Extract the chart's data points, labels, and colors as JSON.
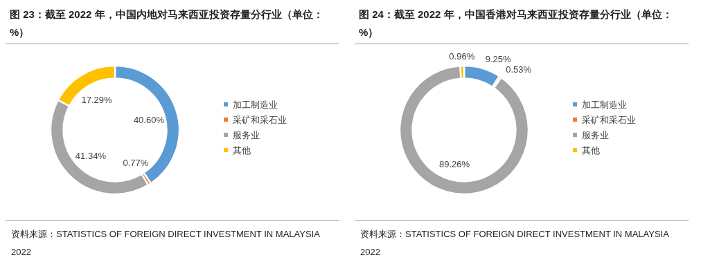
{
  "chart_data": [
    {
      "type": "donut",
      "title": "图 23：截至 2022 年，中国内地对马来西亚投资存量分行业（单位： %）",
      "categories": [
        "加工制造业",
        "采矿和采石业",
        "服务业",
        "其他"
      ],
      "values": [
        40.6,
        0.77,
        41.34,
        17.29
      ],
      "colors": [
        "#5b9bd5",
        "#ed7d31",
        "#a5a5a5",
        "#ffc000"
      ],
      "legend": "right",
      "value_labels": [
        "40.60%",
        "0.77%",
        "41.34%",
        "17.29%"
      ],
      "annotations": [
        "资料来源：STATISTICS OF FOREIGN DIRECT INVESTMENT IN MALAYSIA 2022"
      ]
    },
    {
      "type": "donut",
      "title": "图 24：截至 2022 年，中国香港对马来西亚投资存量分行业（单位：%）",
      "categories": [
        "加工制造业",
        "采矿和采石业",
        "服务业",
        "其他"
      ],
      "values": [
        9.25,
        0.53,
        89.26,
        0.96
      ],
      "colors": [
        "#5b9bd5",
        "#ed7d31",
        "#a5a5a5",
        "#ffc000"
      ],
      "legend": "right",
      "value_labels": [
        "9.25%",
        "0.53%",
        "89.26%",
        "0.96%"
      ],
      "annotations": [
        "资料来源：STATISTICS OF FOREIGN DIRECT INVESTMENT IN MALAYSIA 2022"
      ]
    }
  ]
}
